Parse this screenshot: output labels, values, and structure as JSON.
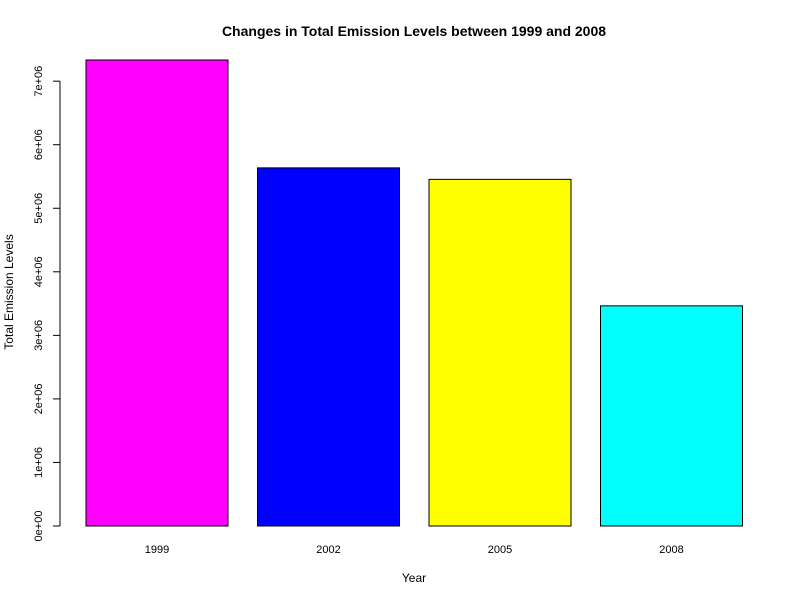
{
  "chart_data": {
    "type": "bar",
    "title": "Changes in Total Emission Levels between 1999 and 2008",
    "xlabel": "Year",
    "ylabel": "Total Emission Levels",
    "categories": [
      "1999",
      "2002",
      "2005",
      "2008"
    ],
    "values": [
      7332967,
      5635780,
      5454703,
      3464206
    ],
    "colors": [
      "#ff00ff",
      "#0000ff",
      "#ffff00",
      "#00ffff"
    ],
    "ylim": [
      0,
      7332967
    ],
    "yticks": [
      0,
      1000000,
      2000000,
      3000000,
      4000000,
      5000000,
      6000000,
      7000000
    ],
    "ytick_labels": [
      "0e+00",
      "1e+06",
      "2e+06",
      "3e+06",
      "4e+06",
      "5e+06",
      "6e+06",
      "7e+06"
    ],
    "grid": false,
    "legend": "none"
  }
}
